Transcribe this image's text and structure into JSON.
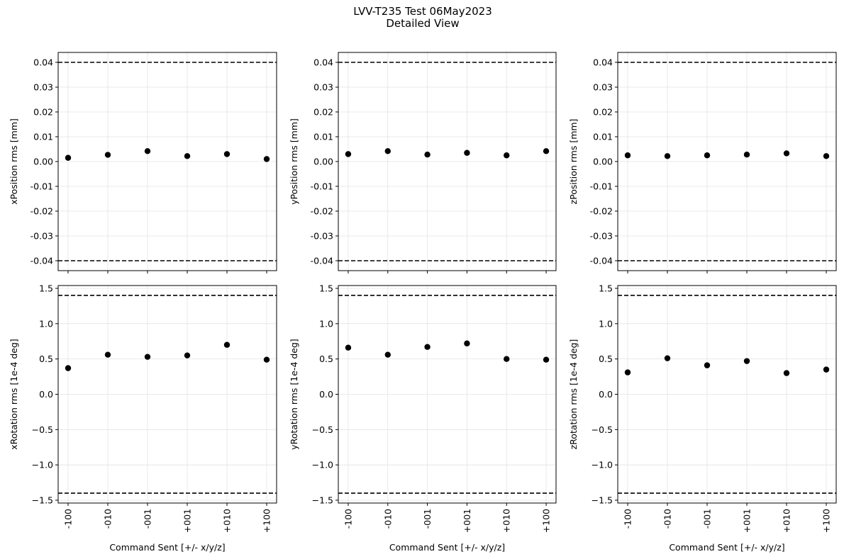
{
  "figure": {
    "title_line1": "LVV-T235 Test 06May2023",
    "title_line2": "Detailed View"
  },
  "chart_data": [
    {
      "type": "scatter",
      "categories": [
        "-100",
        "-010",
        "-001",
        "+001",
        "+010",
        "+100"
      ],
      "values": [
        0.0015,
        0.0027,
        0.0042,
        0.0022,
        0.003,
        0.001
      ],
      "ylabel": "xPosition rms [mm]",
      "xlabel": "",
      "ylim": [
        -0.044,
        0.044
      ],
      "yticks": [
        0.04,
        0.03,
        0.02,
        0.01,
        0.0,
        -0.01,
        -0.02,
        -0.03,
        -0.04
      ],
      "ytick_labels": [
        "0.04",
        "0.03",
        "0.02",
        "0.01",
        "0.00",
        "-0.01",
        "-0.02",
        "-0.03",
        "-0.04"
      ],
      "limits": [
        0.04,
        -0.04
      ],
      "show_xtick_labels": false,
      "grid": true
    },
    {
      "type": "scatter",
      "categories": [
        "-100",
        "-010",
        "-001",
        "+001",
        "+010",
        "+100"
      ],
      "values": [
        0.003,
        0.0042,
        0.0028,
        0.0035,
        0.0025,
        0.0042
      ],
      "ylabel": "yPosition rms [mm]",
      "xlabel": "",
      "ylim": [
        -0.044,
        0.044
      ],
      "yticks": [
        0.04,
        0.03,
        0.02,
        0.01,
        0.0,
        -0.01,
        -0.02,
        -0.03,
        -0.04
      ],
      "ytick_labels": [
        "0.04",
        "0.03",
        "0.02",
        "0.01",
        "0.00",
        "-0.01",
        "-0.02",
        "-0.03",
        "-0.04"
      ],
      "limits": [
        0.04,
        -0.04
      ],
      "show_xtick_labels": false,
      "grid": true
    },
    {
      "type": "scatter",
      "categories": [
        "-100",
        "-010",
        "-001",
        "+001",
        "+010",
        "+100"
      ],
      "values": [
        0.0025,
        0.0022,
        0.0025,
        0.0028,
        0.0033,
        0.0022
      ],
      "ylabel": "zPosition rms [mm]",
      "xlabel": "",
      "ylim": [
        -0.044,
        0.044
      ],
      "yticks": [
        0.04,
        0.03,
        0.02,
        0.01,
        0.0,
        -0.01,
        -0.02,
        -0.03,
        -0.04
      ],
      "ytick_labels": [
        "0.04",
        "0.03",
        "0.02",
        "0.01",
        "0.00",
        "-0.01",
        "-0.02",
        "-0.03",
        "-0.04"
      ],
      "limits": [
        0.04,
        -0.04
      ],
      "show_xtick_labels": false,
      "grid": true
    },
    {
      "type": "scatter",
      "categories": [
        "-100",
        "-010",
        "-001",
        "+001",
        "+010",
        "+100"
      ],
      "values": [
        0.37,
        0.56,
        0.53,
        0.55,
        0.7,
        0.49
      ],
      "ylabel": "xRotation rms [1e-4 deg]",
      "xlabel": "Command Sent [+/- x/y/z]",
      "ylim": [
        -1.54,
        1.54
      ],
      "yticks": [
        1.5,
        1.0,
        0.5,
        0.0,
        -0.5,
        -1.0,
        -1.5
      ],
      "ytick_labels": [
        "1.5",
        "1.0",
        "0.5",
        "0.0",
        "−0.5",
        "−1.0",
        "−1.5"
      ],
      "limits": [
        1.4,
        -1.4
      ],
      "show_xtick_labels": true,
      "grid": true
    },
    {
      "type": "scatter",
      "categories": [
        "-100",
        "-010",
        "-001",
        "+001",
        "+010",
        "+100"
      ],
      "values": [
        0.66,
        0.56,
        0.67,
        0.72,
        0.5,
        0.49
      ],
      "ylabel": "yRotation rms [1e-4 deg]",
      "xlabel": "Command Sent [+/- x/y/z]",
      "ylim": [
        -1.54,
        1.54
      ],
      "yticks": [
        1.5,
        1.0,
        0.5,
        0.0,
        -0.5,
        -1.0,
        -1.5
      ],
      "ytick_labels": [
        "1.5",
        "1.0",
        "0.5",
        "0.0",
        "−0.5",
        "−1.0",
        "−1.5"
      ],
      "limits": [
        1.4,
        -1.4
      ],
      "show_xtick_labels": true,
      "grid": true
    },
    {
      "type": "scatter",
      "categories": [
        "-100",
        "-010",
        "-001",
        "+001",
        "+010",
        "+100"
      ],
      "values": [
        0.31,
        0.51,
        0.41,
        0.47,
        0.3,
        0.35
      ],
      "ylabel": "zRotation rms [1e-4 deg]",
      "xlabel": "Command Sent [+/- x/y/z]",
      "ylim": [
        -1.54,
        1.54
      ],
      "yticks": [
        1.5,
        1.0,
        0.5,
        0.0,
        -0.5,
        -1.0,
        -1.5
      ],
      "ytick_labels": [
        "1.5",
        "1.0",
        "0.5",
        "0.0",
        "−0.5",
        "−1.0",
        "−1.5"
      ],
      "limits": [
        1.4,
        -1.4
      ],
      "show_xtick_labels": true,
      "grid": true
    }
  ]
}
